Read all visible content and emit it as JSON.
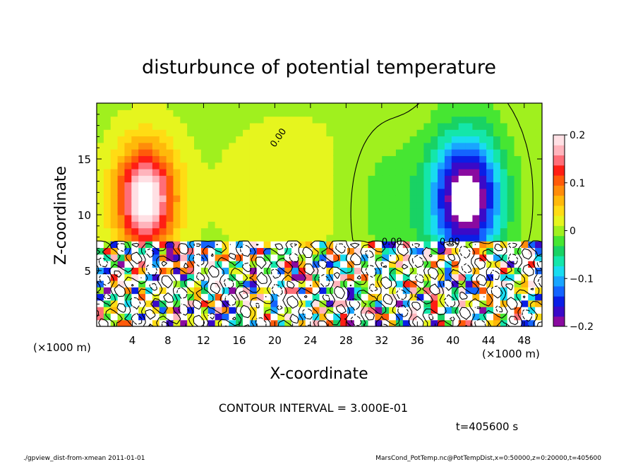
{
  "chart_data": {
    "type": "heatmap",
    "title": "disturbunce of potential temperature",
    "xlabel": "X-coordinate",
    "ylabel": "Z-coordinate",
    "x_unit_left": "(×1000 m)",
    "x_unit_right": "(×1000 m)",
    "xlim": [
      0,
      50
    ],
    "ylim": [
      0,
      20
    ],
    "x_ticks": [
      4,
      8,
      12,
      16,
      20,
      24,
      28,
      32,
      36,
      40,
      44,
      48
    ],
    "x_tick_labels": [
      "4",
      "8",
      "12",
      "16",
      "20",
      "24",
      "28",
      "32",
      "36",
      "40",
      "44",
      "48"
    ],
    "y_ticks": [
      5,
      10,
      15
    ],
    "y_tick_labels": [
      "5",
      "10",
      "15"
    ],
    "colorbar": {
      "min": -0.2,
      "max": 0.2,
      "ticks": [
        0.2,
        0.1,
        0,
        -0.1,
        -0.2
      ],
      "tick_labels": [
        "0.2",
        "0.1",
        "0",
        "−0.1",
        "−0.2"
      ],
      "colors": [
        "#8a0aa0",
        "#3a0ac8",
        "#0a1ee6",
        "#1464ff",
        "#19a5ff",
        "#19dcf0",
        "#14e6aa",
        "#19d264",
        "#46e632",
        "#a0f01e",
        "#e6f51e",
        "#ffdc14",
        "#ffb90a",
        "#ff8c0a",
        "#ff5a0a",
        "#ff1e14",
        "#ff6e78",
        "#ffb4bc",
        "#ffe0e4"
      ]
    },
    "contour_labels": [
      "0.00",
      "0.00",
      "0.00"
    ],
    "contour_interval_text": "CONTOUR INTERVAL = 3.000E-01",
    "time_text": "t=405600 s",
    "footer_left": "./gpview_dist-from-xmean  2011-01-01",
    "footer_right": "MarsCond_PotTemp.nc@PotTempDist,x=0:50000,z=0:20000,t=405600",
    "field_features": [
      {
        "kind": "warm",
        "x": 5.5,
        "z": 11.5,
        "sx": 3.2,
        "sz": 4.5,
        "amp": 0.22
      },
      {
        "kind": "warm",
        "x": 22,
        "z": 12,
        "sx": 9,
        "sz": 7,
        "amp": 0.015
      },
      {
        "kind": "cold",
        "x": 41.5,
        "z": 11.5,
        "sx": 3.8,
        "sz": 5.5,
        "amp": -0.24
      },
      {
        "kind": "cold",
        "x": 33,
        "z": 11,
        "sx": 5,
        "sz": 6,
        "amp": -0.03
      }
    ],
    "boundary_layer_top_z": 7.4
  }
}
